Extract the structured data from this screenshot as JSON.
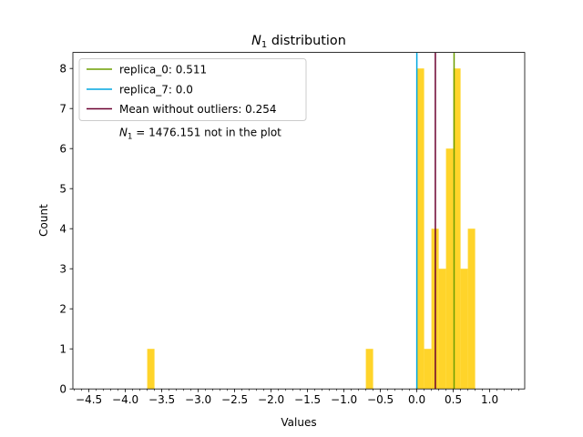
{
  "chart_data": {
    "type": "bar",
    "title_main": "N",
    "title_sub": "1",
    "title_rest": " distribution",
    "xlabel": "Values",
    "ylabel": "Count",
    "xlim": [
      -4.72,
      1.48
    ],
    "ylim": [
      0,
      8.4
    ],
    "xticks": [
      "−4.5",
      "−4.0",
      "−3.5",
      "−3.0",
      "−2.5",
      "−2.0",
      "−1.5",
      "−1.0",
      "−0.5",
      "0.0",
      "0.5",
      "1.0"
    ],
    "xtick_values": [
      -4.5,
      -4.0,
      -3.5,
      -3.0,
      -2.5,
      -2.0,
      -1.5,
      -1.0,
      -0.5,
      0.0,
      0.5,
      1.0
    ],
    "yticks": [
      "0",
      "1",
      "2",
      "3",
      "4",
      "5",
      "6",
      "7",
      "8"
    ],
    "ytick_values": [
      0,
      1,
      2,
      3,
      4,
      5,
      6,
      7,
      8
    ],
    "bin_width": 0.1,
    "bar_color": "#FFD42A",
    "bins": [
      {
        "start": -3.7,
        "count": 1
      },
      {
        "start": -0.7,
        "count": 1
      },
      {
        "start": 0.0,
        "count": 8
      },
      {
        "start": 0.1,
        "count": 1
      },
      {
        "start": 0.2,
        "count": 4
      },
      {
        "start": 0.3,
        "count": 3
      },
      {
        "start": 0.4,
        "count": 6
      },
      {
        "start": 0.5,
        "count": 8
      },
      {
        "start": 0.6,
        "count": 3
      },
      {
        "start": 0.7,
        "count": 4
      }
    ],
    "vlines": [
      {
        "x": 0.511,
        "color": "#6B9E00",
        "label": "replica_0: 0.511"
      },
      {
        "x": 0.0,
        "color": "#00A6E0",
        "label": "replica_7: 0.0"
      },
      {
        "x": 0.254,
        "color": "#6B0030",
        "label": "Mean without outliers: 0.254"
      }
    ],
    "legend_placement": "top-left",
    "annotation_main": "N",
    "annotation_sub": "1",
    "annotation_rest": " = 1476.151 not in the plot"
  }
}
